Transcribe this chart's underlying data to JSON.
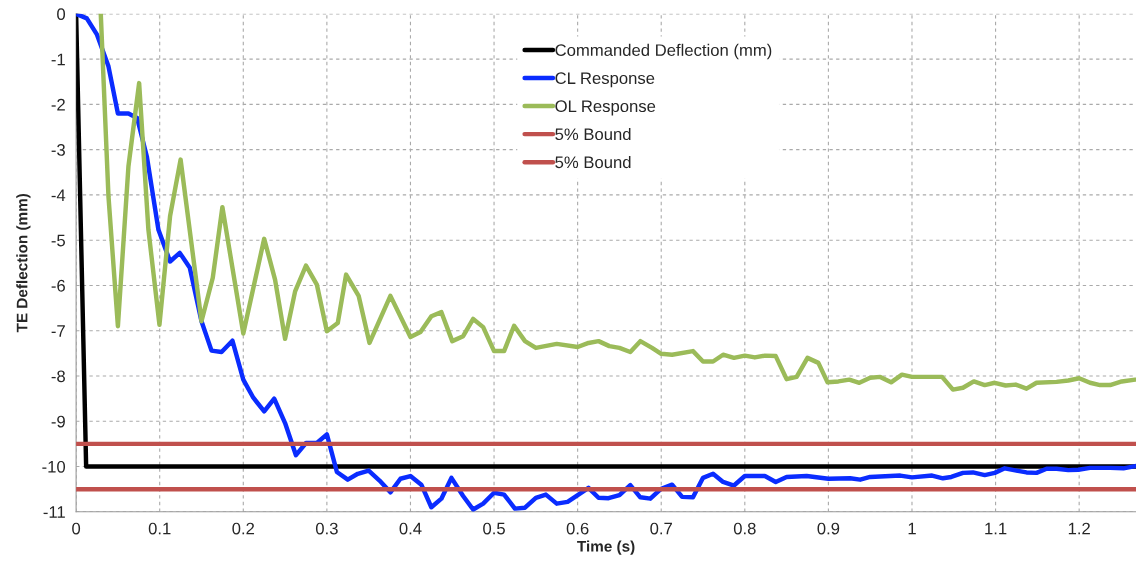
{
  "chart_data": {
    "type": "line",
    "xlabel": "Time (s)",
    "ylabel": "TE Deflection (mm)",
    "xlim": [
      0,
      1.268
    ],
    "ylim": [
      -11,
      0
    ],
    "xticks": [
      0,
      0.1,
      0.2,
      0.3,
      0.4,
      0.5,
      0.6,
      0.7,
      0.8,
      0.9,
      1,
      1.1,
      1.2
    ],
    "yticks": [
      0,
      -1,
      -2,
      -3,
      -4,
      -5,
      -6,
      -7,
      -8,
      -9,
      -10,
      -11
    ],
    "grid": true,
    "legend": "top",
    "line_style": "solid",
    "marker": "none",
    "series": [
      {
        "name": "Commanded Deflection (mm)",
        "color": "#000000",
        "x": [
          0,
          0.012,
          1.268
        ],
        "values": [
          0,
          -10,
          -10
        ]
      },
      {
        "name": "CL Response",
        "color": "#0a2cff",
        "x": [
          0,
          0.0128,
          0.025,
          0.0387,
          0.05,
          0.0626,
          0.073,
          0.0846,
          0.0985,
          0.1124,
          0.124,
          0.136,
          0.15,
          0.162,
          0.174,
          0.187,
          0.2,
          0.212,
          0.225,
          0.237,
          0.25,
          0.263,
          0.275,
          0.288,
          0.3,
          0.312,
          0.325,
          0.337,
          0.35,
          0.363,
          0.376,
          0.388,
          0.4,
          0.413,
          0.425,
          0.437,
          0.449,
          0.463,
          0.475,
          0.487,
          0.5,
          0.512,
          0.525,
          0.537,
          0.55,
          0.562,
          0.575,
          0.588,
          0.601,
          0.613,
          0.625,
          0.637,
          0.65,
          0.663,
          0.675,
          0.687,
          0.7,
          0.713,
          0.725,
          0.738,
          0.75,
          0.762,
          0.774,
          0.787,
          0.8,
          0.812,
          0.824,
          0.837,
          0.85,
          0.874,
          0.9,
          0.926,
          0.938,
          0.95,
          0.986,
          1.0,
          1.024,
          1.037,
          1.047,
          1.061,
          1.073,
          1.087,
          1.099,
          1.111,
          1.125,
          1.137,
          1.149,
          1.161,
          1.173,
          1.187,
          1.199,
          1.213,
          1.237,
          1.253,
          1.267
        ],
        "values": [
          0,
          -0.1,
          -0.46,
          -1.16,
          -2.2,
          -2.2,
          -2.3,
          -3.15,
          -4.77,
          -5.47,
          -5.28,
          -5.61,
          -6.79,
          -7.44,
          -7.47,
          -7.22,
          -8.08,
          -8.48,
          -8.78,
          -8.5,
          -9.04,
          -9.75,
          -9.48,
          -9.48,
          -9.29,
          -10.12,
          -10.29,
          -10.16,
          -10.09,
          -10.31,
          -10.57,
          -10.27,
          -10.21,
          -10.4,
          -10.9,
          -10.71,
          -10.25,
          -10.65,
          -10.95,
          -10.82,
          -10.58,
          -10.62,
          -10.93,
          -10.91,
          -10.69,
          -10.62,
          -10.82,
          -10.78,
          -10.62,
          -10.47,
          -10.69,
          -10.7,
          -10.63,
          -10.41,
          -10.68,
          -10.71,
          -10.49,
          -10.4,
          -10.67,
          -10.68,
          -10.25,
          -10.16,
          -10.34,
          -10.42,
          -10.21,
          -10.21,
          -10.21,
          -10.34,
          -10.23,
          -10.21,
          -10.27,
          -10.26,
          -10.29,
          -10.23,
          -10.2,
          -10.24,
          -10.2,
          -10.26,
          -10.23,
          -10.14,
          -10.13,
          -10.19,
          -10.14,
          -10.04,
          -10.09,
          -10.13,
          -10.14,
          -10.05,
          -10.05,
          -10.08,
          -10.07,
          -10.03,
          -10.03,
          -10.04,
          -9.99
        ]
      },
      {
        "name": "OL Response",
        "color": "#9bbb59",
        "x": [
          0.0295,
          0.0387,
          0.05,
          0.0626,
          0.0754,
          0.0865,
          0.0997,
          0.1124,
          0.125,
          0.15,
          0.1635,
          0.175,
          0.2,
          0.225,
          0.238,
          0.25,
          0.262,
          0.275,
          0.288,
          0.3,
          0.313,
          0.323,
          0.338,
          0.351,
          0.376,
          0.4,
          0.412,
          0.425,
          0.437,
          0.45,
          0.463,
          0.475,
          0.487,
          0.5,
          0.512,
          0.524,
          0.537,
          0.55,
          0.575,
          0.6,
          0.613,
          0.625,
          0.638,
          0.65,
          0.663,
          0.675,
          0.689,
          0.7,
          0.713,
          0.738,
          0.75,
          0.762,
          0.774,
          0.787,
          0.8,
          0.812,
          0.824,
          0.837,
          0.85,
          0.862,
          0.875,
          0.888,
          0.899,
          0.912,
          0.925,
          0.937,
          0.95,
          0.962,
          0.975,
          0.988,
          1.0,
          1.036,
          1.049,
          1.061,
          1.074,
          1.087,
          1.099,
          1.112,
          1.124,
          1.137,
          1.149,
          1.173,
          1.187,
          1.2,
          1.213,
          1.225,
          1.237,
          1.251,
          1.267
        ],
        "values": [
          0,
          -4.03,
          -6.9,
          -3.37,
          -1.53,
          -4.77,
          -6.87,
          -4.47,
          -3.22,
          -6.79,
          -5.83,
          -4.27,
          -7.06,
          -4.97,
          -5.87,
          -7.18,
          -6.13,
          -5.56,
          -5.98,
          -7.01,
          -6.83,
          -5.76,
          -6.23,
          -7.27,
          -6.23,
          -7.14,
          -7.03,
          -6.68,
          -6.59,
          -7.23,
          -7.12,
          -6.74,
          -6.92,
          -7.45,
          -7.45,
          -6.89,
          -7.23,
          -7.38,
          -7.29,
          -7.36,
          -7.27,
          -7.23,
          -7.34,
          -7.38,
          -7.47,
          -7.23,
          -7.38,
          -7.51,
          -7.53,
          -7.45,
          -7.68,
          -7.68,
          -7.53,
          -7.6,
          -7.55,
          -7.59,
          -7.55,
          -7.56,
          -8.07,
          -8.02,
          -7.6,
          -7.71,
          -8.14,
          -8.12,
          -8.08,
          -8.15,
          -8.04,
          -8.02,
          -8.14,
          -7.97,
          -8.02,
          -8.02,
          -8.3,
          -8.26,
          -8.12,
          -8.2,
          -8.15,
          -8.21,
          -8.19,
          -8.28,
          -8.15,
          -8.13,
          -8.1,
          -8.05,
          -8.15,
          -8.2,
          -8.2,
          -8.12,
          -8.08
        ]
      },
      {
        "name": "5% Bound",
        "color": "#c0504d",
        "x": [
          0,
          1.268
        ],
        "values": [
          -9.5,
          -9.5
        ]
      },
      {
        "name": "5% Bound",
        "color": "#c0504d",
        "x": [
          0,
          1.268
        ],
        "values": [
          -10.5,
          -10.5
        ]
      }
    ]
  }
}
